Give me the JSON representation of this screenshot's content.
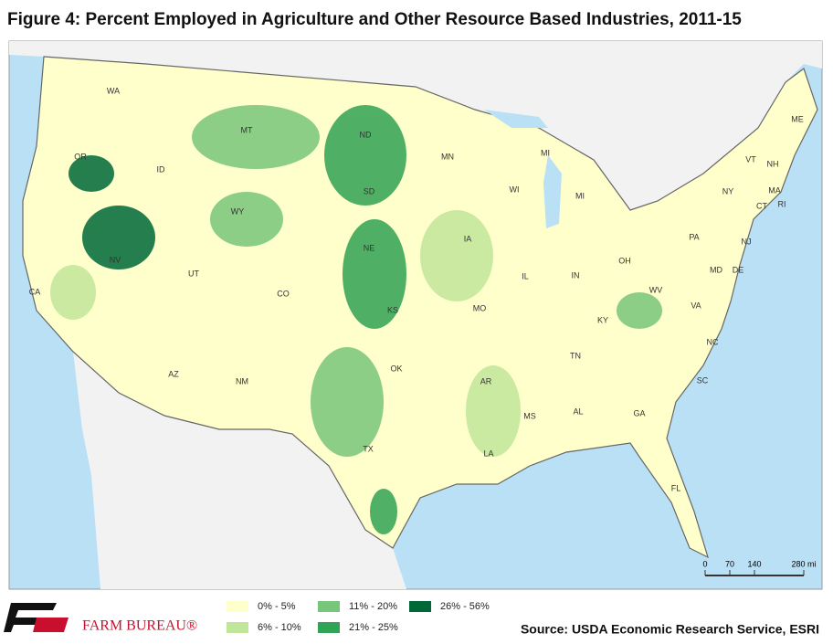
{
  "title": "Figure 4: Percent Employed in Agriculture and Other Resource Based Industries, 2011-15",
  "state_labels": [
    "WA",
    "OR",
    "CA",
    "NV",
    "ID",
    "MT",
    "WY",
    "UT",
    "AZ",
    "NM",
    "CO",
    "ND",
    "SD",
    "NE",
    "KS",
    "OK",
    "TX",
    "MN",
    "IA",
    "MO",
    "AR",
    "LA",
    "WI",
    "IL",
    "MI",
    "MI",
    "IN",
    "OH",
    "KY",
    "TN",
    "MS",
    "AL",
    "GA",
    "FL",
    "SC",
    "NC",
    "VA",
    "WV",
    "PA",
    "NY",
    "VT",
    "NH",
    "ME",
    "MA",
    "CT",
    "RI",
    "NJ",
    "MD",
    "DE"
  ],
  "legend": [
    {
      "label": "0% - 5%",
      "color": "#ffffcc"
    },
    {
      "label": "6% - 10%",
      "color": "#c2e699"
    },
    {
      "label": "11% - 20%",
      "color": "#78c679"
    },
    {
      "label": "21% - 25%",
      "color": "#31a354"
    },
    {
      "label": "26% - 56%",
      "color": "#006837"
    }
  ],
  "scale_bar": [
    "0",
    "70",
    "140",
    "280 mi"
  ],
  "logo": "FARM BUREAU®",
  "source": "Source: USDA Economic Research Service, ESRI"
}
